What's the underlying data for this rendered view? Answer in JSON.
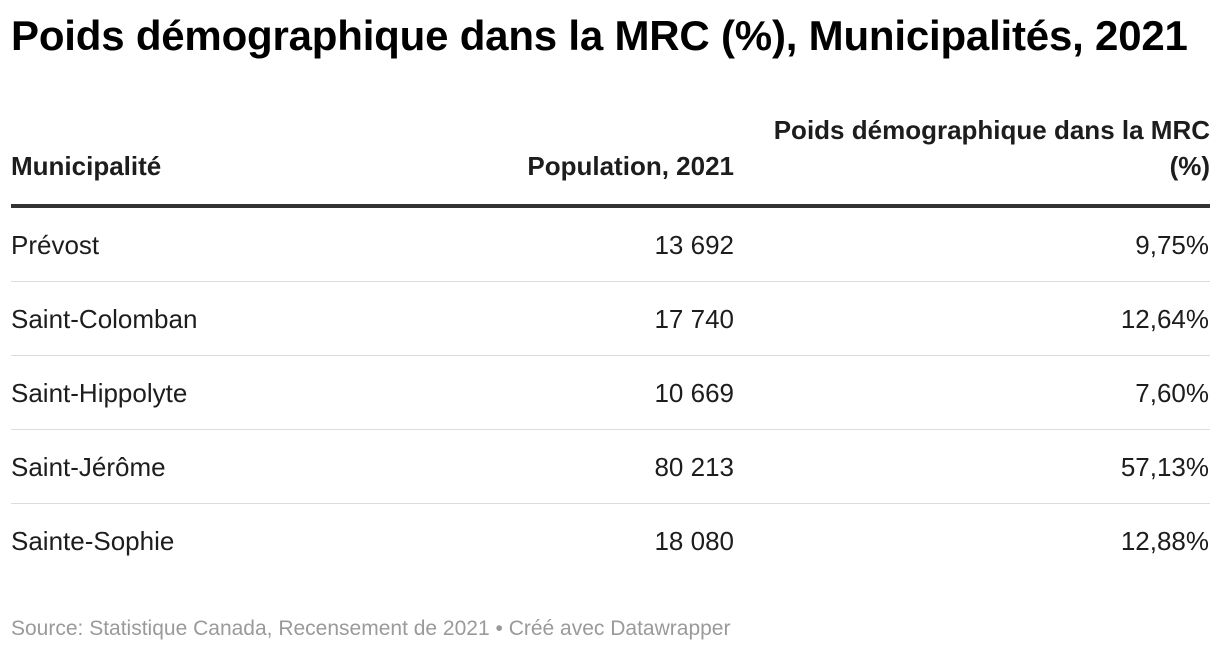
{
  "title": "Poids démographique dans la MRC (%), Municipalités, 2021",
  "chart_data": {
    "type": "table",
    "columns": [
      "Municipalité",
      "Population, 2021",
      "Poids démographique dans la MRC (%)"
    ],
    "rows": [
      [
        "Prévost",
        "13 692",
        "9,75%"
      ],
      [
        "Saint-Colomban",
        "17 740",
        "12,64%"
      ],
      [
        "Saint-Hippolyte",
        "10 669",
        "7,60%"
      ],
      [
        "Saint-Jérôme",
        "80 213",
        "57,13%"
      ],
      [
        "Sainte-Sophie",
        "18 080",
        "12,88%"
      ]
    ]
  },
  "footer": {
    "source": "Source: Statistique Canada, Recensement de 2021",
    "separator": "•",
    "credit": "Créé avec Datawrapper"
  },
  "colors": {
    "text": "#1d1d1d",
    "header_rule": "#333333",
    "row_rule": "#dcdcdc",
    "footer_text": "#9a9a9a"
  }
}
